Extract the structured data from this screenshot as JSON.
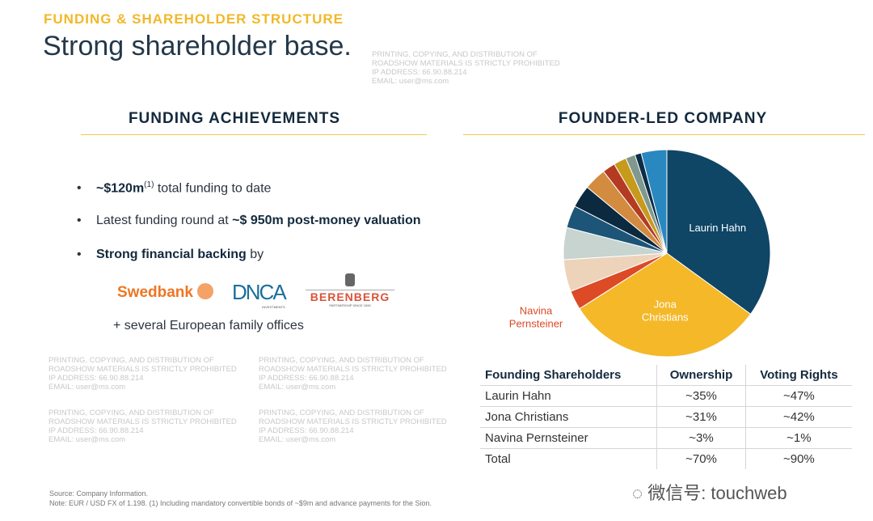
{
  "header": {
    "kicker": "FUNDING & SHAREHOLDER STRUCTURE",
    "title": "Strong shareholder base."
  },
  "left": {
    "heading": "FUNDING ACHIEVEMENTS",
    "bullets": [
      {
        "bold_pre": "~$120m",
        "sup": "(1)",
        "text": " total funding to date"
      },
      {
        "text": "Latest funding round at ",
        "bold": "~$ 950m post-money valuation"
      },
      {
        "bold_pre": "Strong financial backing",
        "text": " by"
      }
    ],
    "backers": [
      "Swedbank",
      "DNCA",
      "BERENBERG"
    ],
    "backer_sub": {
      "dnca": "INVESTMENTS",
      "berenberg": "PARTNERSHIP SINCE 1590"
    },
    "extra": "+ several European family offices"
  },
  "right": {
    "heading": "FOUNDER-LED COMPANY"
  },
  "chart_data": {
    "type": "pie",
    "start": "12 o'clock, clockwise",
    "slices": [
      {
        "name": "Laurin Hahn",
        "value": 35,
        "color": "#0f4565",
        "labeled": true
      },
      {
        "name": "Jona Christians",
        "value": 31,
        "color": "#f4b829",
        "labeled": true
      },
      {
        "name": "Navina Pernsteiner",
        "value": 3,
        "color": "#dc4a26",
        "labeled": true
      },
      {
        "value": 5,
        "color": "#ecd3ba"
      },
      {
        "value": 5,
        "color": "#c7d4cf"
      },
      {
        "value": 3.5,
        "color": "#1c5577"
      },
      {
        "value": 3.5,
        "color": "#0b2a40"
      },
      {
        "value": 3.5,
        "color": "#d28b3f"
      },
      {
        "value": 2,
        "color": "#b43b22"
      },
      {
        "value": 2,
        "color": "#c79a1c"
      },
      {
        "value": 1.5,
        "color": "#7f998f"
      },
      {
        "value": 1,
        "color": "#0d2d48"
      },
      {
        "value": 4,
        "color": "#2a88c0"
      }
    ]
  },
  "table": {
    "headers": [
      "Founding Shareholders",
      "Ownership",
      "Voting Rights"
    ],
    "rows": [
      [
        "Laurin Hahn",
        "~35%",
        "~47%"
      ],
      [
        "Jona Christians",
        "~31%",
        "~42%"
      ],
      [
        "Navina Pernsteiner",
        "~3%",
        "~1%"
      ],
      [
        "Total",
        "~70%",
        "~90%"
      ]
    ]
  },
  "footer": {
    "source": "Source: Company Information.",
    "note": "Note: EUR / USD FX of 1.198. (1) Including mandatory convertible bonds of ~$9m and advance payments for the Sion."
  },
  "watermark": {
    "lines": "PRINTING, COPYING, AND DISTRIBUTION OF\nROADSHOW MATERIALS IS STRICTLY PROHIBITED\nIP ADDRESS: 66.90.88.214\nEMAIL: user@ms.com",
    "wechat": "微信号: touchweb"
  }
}
